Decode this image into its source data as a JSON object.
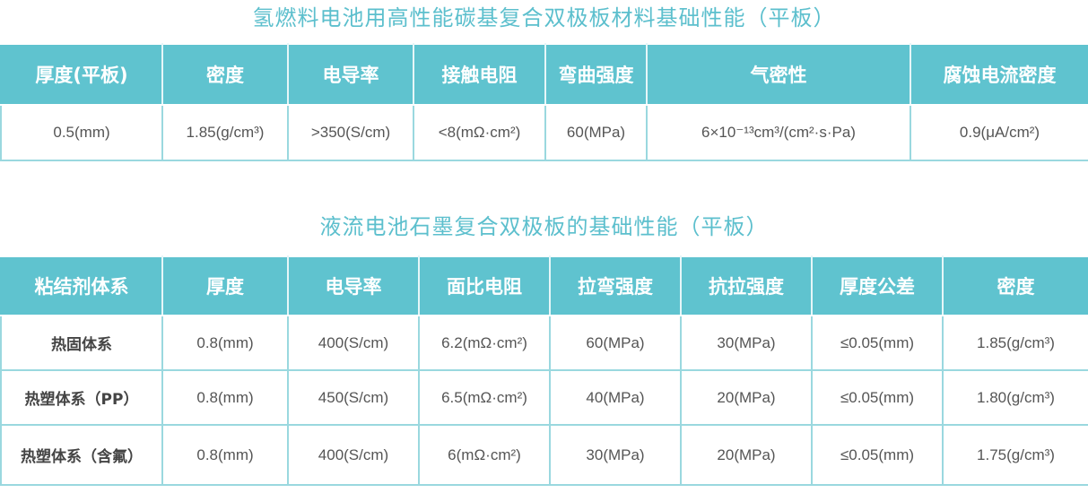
{
  "colors": {
    "title": "#5cbfcd",
    "header_bg": "#5fc3cf",
    "border": "#9ad8df",
    "text": "#555555"
  },
  "table1": {
    "title": "氢燃料电池用高性能碳基复合双极板材料基础性能（平板）",
    "headers": [
      "厚度(平板)",
      "密度",
      "电导率",
      "接触电阻",
      "弯曲强度",
      "气密性",
      "腐蚀电流密度"
    ],
    "rows": [
      [
        "0.5(mm)",
        "1.85(g/cm³)",
        ">350(S/cm)",
        "<8(mΩ·cm²)",
        "60(MPa)",
        "6×10⁻¹³cm³/(cm²·s·Pa)",
        "0.9(μA/cm²)"
      ]
    ]
  },
  "table2": {
    "title": "液流电池石墨复合双极板的基础性能（平板）",
    "headers": [
      "粘结剂体系",
      "厚度",
      "电导率",
      "面比电阻",
      "拉弯强度",
      "抗拉强度",
      "厚度公差",
      "密度"
    ],
    "rows": [
      [
        "热固体系",
        "0.8(mm)",
        "400(S/cm)",
        "6.2(mΩ·cm²)",
        "60(MPa)",
        "30(MPa)",
        "≤0.05(mm)",
        "1.85(g/cm³)"
      ],
      [
        "热塑体系（PP）",
        "0.8(mm)",
        "450(S/cm)",
        "6.5(mΩ·cm²)",
        "40(MPa)",
        "20(MPa)",
        "≤0.05(mm)",
        "1.80(g/cm³)"
      ],
      [
        "热塑体系（含氟）",
        "0.8(mm)",
        "400(S/cm)",
        "6(mΩ·cm²)",
        "30(MPa)",
        "20(MPa)",
        "≤0.05(mm)",
        "1.75(g/cm³)"
      ]
    ]
  }
}
